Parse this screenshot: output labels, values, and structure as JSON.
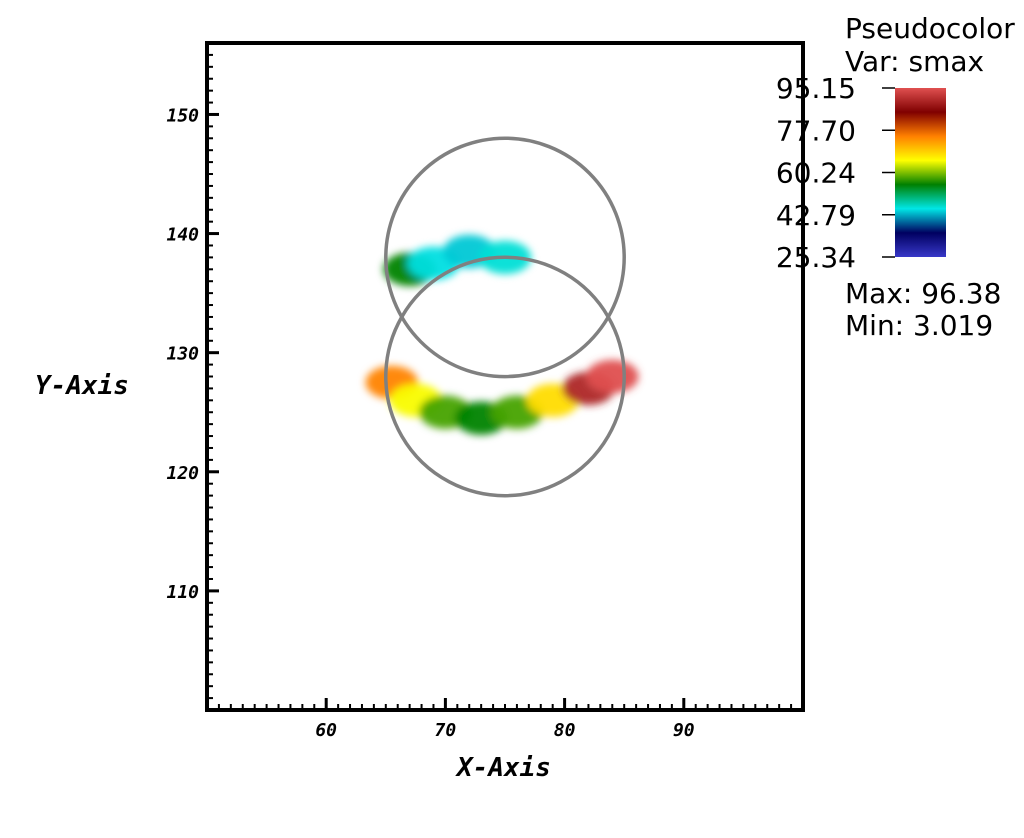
{
  "chart_data": {
    "type": "heatmap",
    "xlabel": "X-Axis",
    "ylabel": "Y-Axis",
    "xlim": [
      50,
      100
    ],
    "ylim": [
      100,
      156
    ],
    "x_ticks": [
      60,
      70,
      80,
      90
    ],
    "y_ticks": [
      110,
      120,
      130,
      140,
      150
    ],
    "legend": {
      "title": "Pseudocolor",
      "var_label": "Var: smax",
      "levels": [
        "95.15",
        "77.70",
        "60.24",
        "42.79",
        "25.34"
      ],
      "range": [
        25.34,
        95.15
      ],
      "max_label": "Max:  96.38",
      "min_label": "Min:  3.019",
      "colormap": [
        "#3838c8",
        "#000060",
        "#00e6e6",
        "#008000",
        "#ffff00",
        "#ff8000",
        "#800000",
        "#e05050"
      ]
    },
    "outline_color": "#808080",
    "upper_circle": {
      "center": [
        75,
        138
      ],
      "radius": 10
    },
    "lower_body": {
      "center": [
        75,
        128
      ],
      "radius": 10,
      "clip_center": [
        75,
        138
      ],
      "clip_radius": 10
    },
    "field": [
      {
        "x": 67.0,
        "y": 137.0,
        "value": 55
      },
      {
        "x": 69.0,
        "y": 137.5,
        "value": 45
      },
      {
        "x": 72.0,
        "y": 138.5,
        "value": 44
      },
      {
        "x": 75.0,
        "y": 138.0,
        "value": 46
      },
      {
        "x": 65.5,
        "y": 127.5,
        "value": 75
      },
      {
        "x": 67.5,
        "y": 126.0,
        "value": 65
      },
      {
        "x": 70.0,
        "y": 125.0,
        "value": 58
      },
      {
        "x": 73.0,
        "y": 124.5,
        "value": 55
      },
      {
        "x": 76.0,
        "y": 125.0,
        "value": 58
      },
      {
        "x": 79.0,
        "y": 126.0,
        "value": 68
      },
      {
        "x": 82.0,
        "y": 127.0,
        "value": 90
      },
      {
        "x": 84.0,
        "y": 128.0,
        "value": 95
      }
    ]
  }
}
